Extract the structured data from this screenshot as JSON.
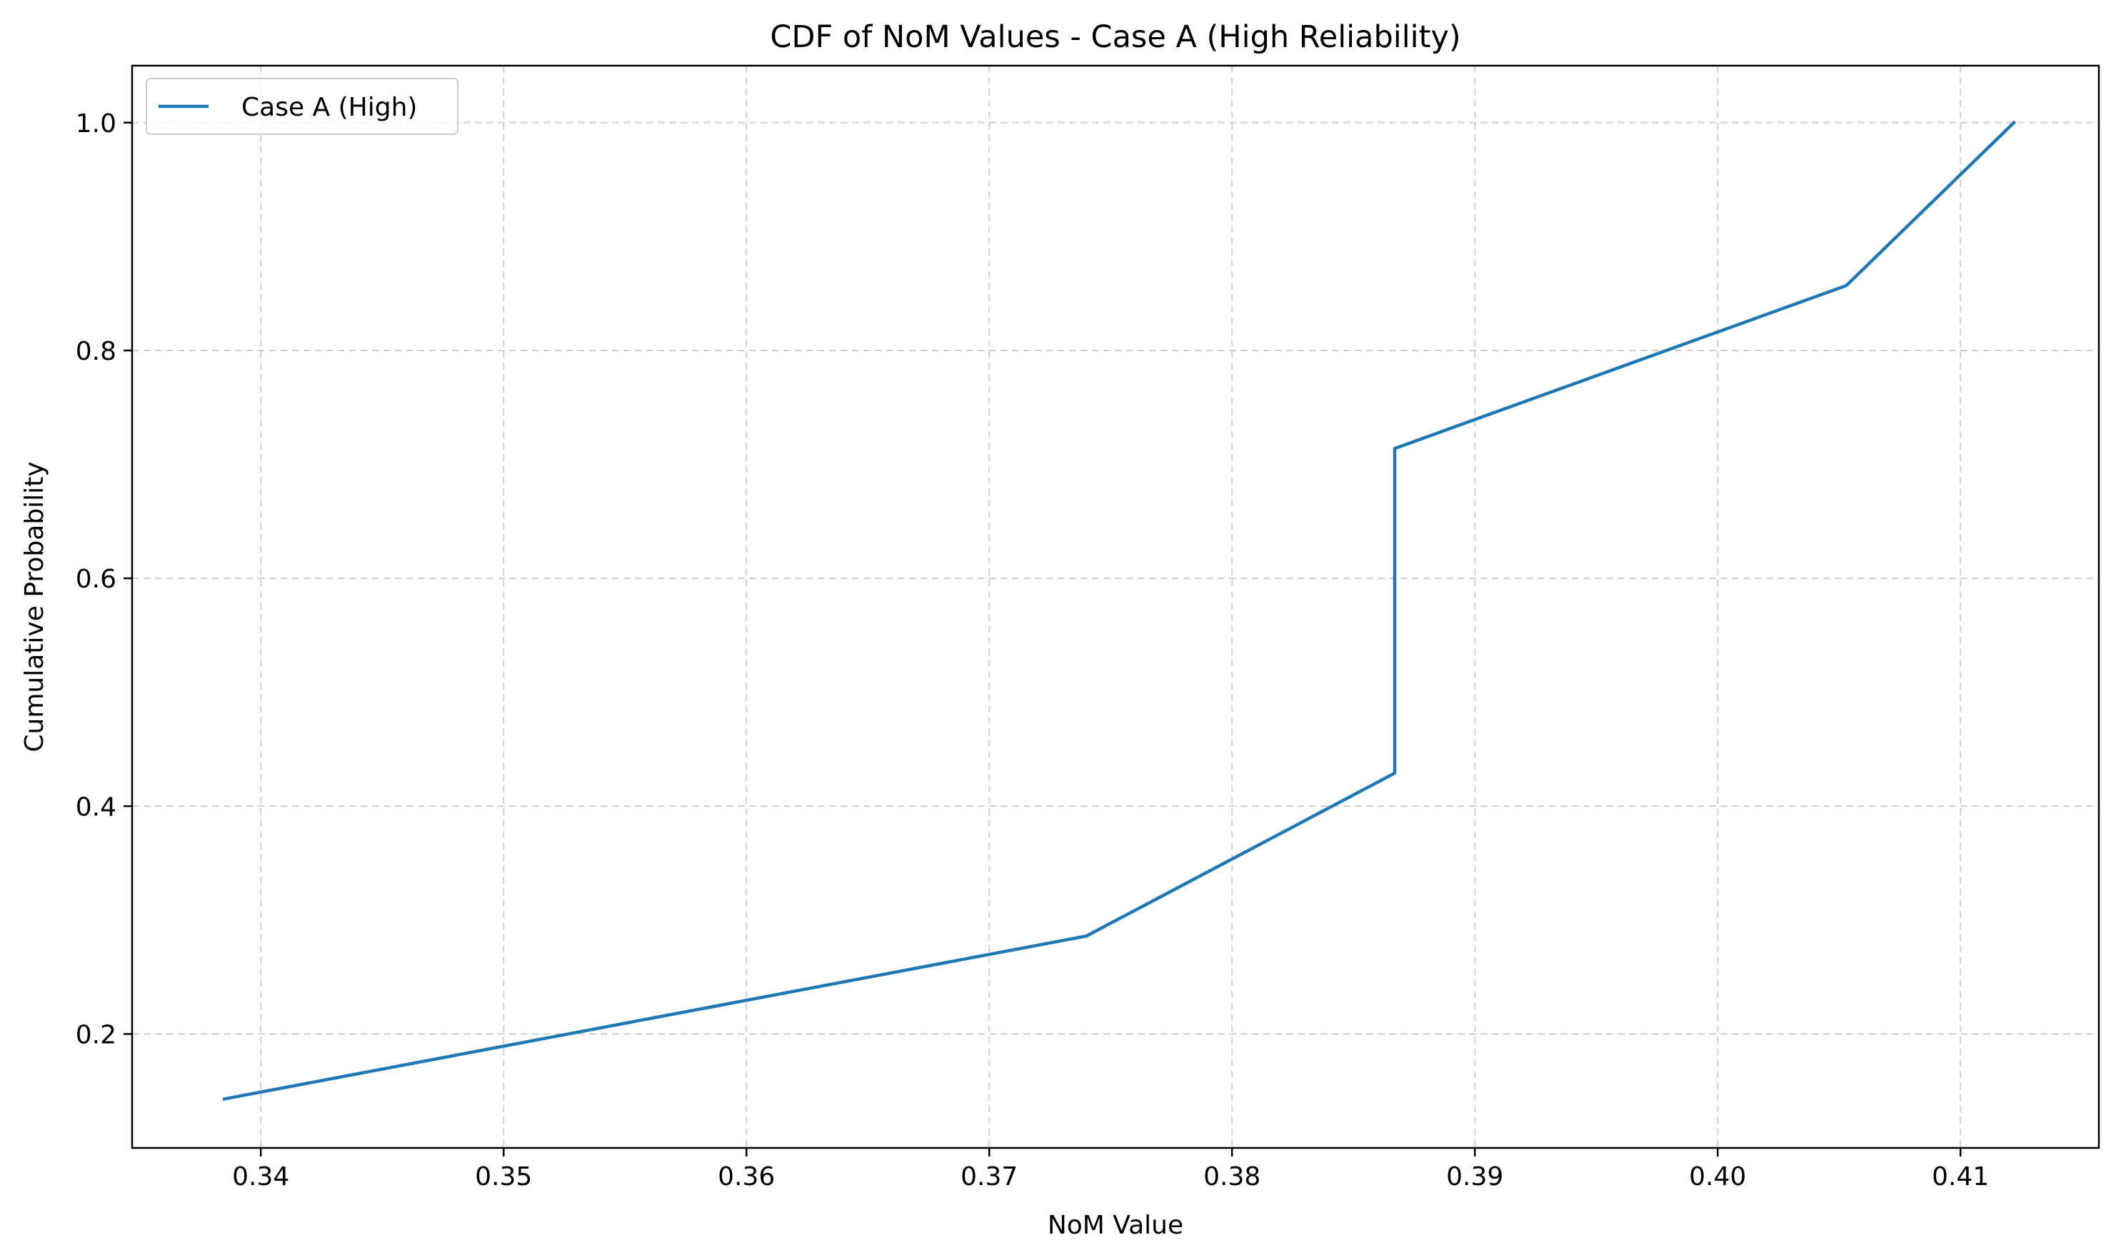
{
  "chart_data": {
    "type": "line",
    "title": "CDF of NoM Values - Case A (High Reliability)",
    "xlabel": "NoM Value",
    "ylabel": "Cumulative Probability",
    "xlim": [
      0.3347,
      0.4157
    ],
    "ylim": [
      0.1,
      1.05
    ],
    "xticks": [
      0.34,
      0.35,
      0.36,
      0.37,
      0.38,
      0.39,
      0.4,
      0.41
    ],
    "xtick_labels": [
      "0.34",
      "0.35",
      "0.36",
      "0.37",
      "0.38",
      "0.39",
      "0.40",
      "0.41"
    ],
    "yticks": [
      0.2,
      0.4,
      0.6,
      0.8,
      1.0
    ],
    "ytick_labels": [
      "0.2",
      "0.4",
      "0.6",
      "0.8",
      "1.0"
    ],
    "grid": true,
    "legend_position": "top-left",
    "series": [
      {
        "name": "Case A (High)",
        "color": "#1f77b4",
        "x": [
          0.3385,
          0.374,
          0.3867,
          0.3867,
          0.4053,
          0.4122
        ],
        "y": [
          0.143,
          0.286,
          0.429,
          0.714,
          0.857,
          1.0
        ]
      }
    ]
  }
}
